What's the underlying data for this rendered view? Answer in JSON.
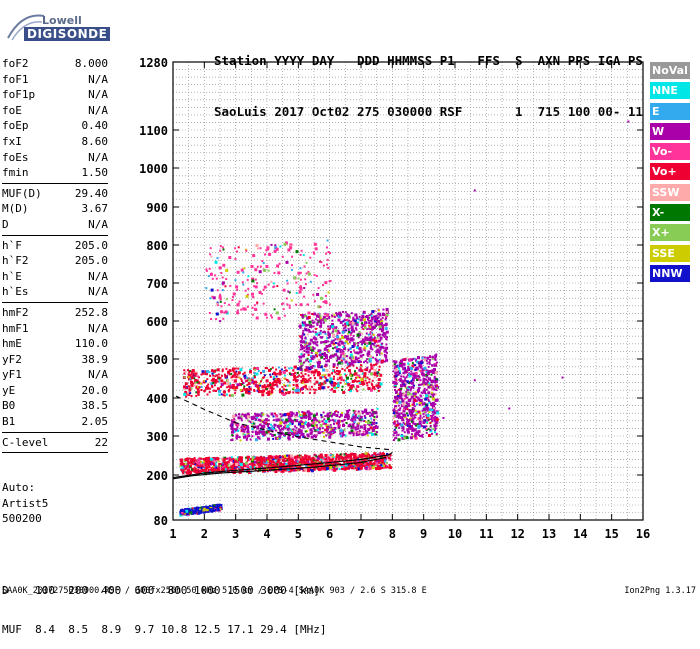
{
  "logo": {
    "top": "Lowell",
    "bottom": "DIGISONDE"
  },
  "header": {
    "line1": "Station YYYY DAY   DDD HHMMSS P1   FFS  S  AXN PPS IGA PS",
    "line2": "SaoLuis 2017 Oct02 275 030000 RSF       1  715 100 00- 11"
  },
  "params": [
    {
      "group": [
        {
          "name": "foF2",
          "value": "8.000"
        },
        {
          "name": "foF1",
          "value": "N/A"
        },
        {
          "name": "foF1p",
          "value": "N/A"
        },
        {
          "name": "foE",
          "value": "N/A"
        },
        {
          "name": "foEp",
          "value": "0.40"
        },
        {
          "name": "fxI",
          "value": "8.60"
        },
        {
          "name": "foEs",
          "value": "N/A"
        },
        {
          "name": "fmin",
          "value": "1.50"
        }
      ]
    },
    {
      "group": [
        {
          "name": "MUF(D)",
          "value": "29.40"
        },
        {
          "name": "M(D)",
          "value": "3.67"
        },
        {
          "name": "D",
          "value": "N/A"
        }
      ]
    },
    {
      "group": [
        {
          "name": "h`F",
          "value": "205.0"
        },
        {
          "name": "h`F2",
          "value": "205.0"
        },
        {
          "name": "h`E",
          "value": "N/A"
        },
        {
          "name": "h`Es",
          "value": "N/A"
        }
      ]
    },
    {
      "group": [
        {
          "name": "hmF2",
          "value": "252.8"
        },
        {
          "name": "hmF1",
          "value": "N/A"
        },
        {
          "name": "hmE",
          "value": "110.0"
        },
        {
          "name": "yF2",
          "value": "38.9"
        },
        {
          "name": "yF1",
          "value": "N/A"
        },
        {
          "name": "yE",
          "value": "20.0"
        },
        {
          "name": "B0",
          "value": "38.5"
        },
        {
          "name": "B1",
          "value": "2.05"
        }
      ]
    },
    {
      "group": [
        {
          "name": "C-level",
          "value": "22"
        }
      ]
    }
  ],
  "auto": {
    "line1": "Auto:",
    "line2": "Artist5",
    "line3": "500200"
  },
  "legend": [
    {
      "label": "NoVal",
      "color": "#999999"
    },
    {
      "label": "NNE",
      "color": "#00e6e6"
    },
    {
      "label": "E",
      "color": "#33aaee"
    },
    {
      "label": "W",
      "color": "#aa00aa"
    },
    {
      "label": "Vo-",
      "color": "#ff3399"
    },
    {
      "label": "Vo+",
      "color": "#ee0033"
    },
    {
      "label": "SSW",
      "color": "#ffaaaa"
    },
    {
      "label": "X-",
      "color": "#007700"
    },
    {
      "label": "X+",
      "color": "#88cc55"
    },
    {
      "label": "SSE",
      "color": "#cccc00"
    },
    {
      "label": "NNW",
      "color": "#1111cc"
    }
  ],
  "dtable": {
    "d_line": "D    100  200  400  600  800 1000 1500 3000 [km]",
    "muf_line": "MUF  8.4  8.5  8.9  9.7 10.8 12.5 17.1 29.4 [MHz]"
  },
  "footer": "SAA0K_2017275030000.RSF / 300fx256h 50 kHz 5.0 km / DPS-4 SAA0K 903 / 2.6 S 315.8 E",
  "version": "Ion2Png 1.3.17",
  "chart_data": {
    "type": "scatter",
    "x_ticks": [
      "1",
      "2",
      "3",
      "4",
      "5",
      "6",
      "7",
      "8",
      "9",
      "10",
      "11",
      "12",
      "13",
      "14",
      "15",
      "16"
    ],
    "y_ticks": [
      "80",
      "200",
      "300",
      "400",
      "500",
      "600",
      "700",
      "800",
      "900",
      "1000",
      "1100",
      "1280"
    ],
    "xlim": [
      1,
      16
    ],
    "ylim": [
      80,
      1280
    ],
    "y_scale": "nonlinear",
    "grid": true,
    "trace_lines": [
      {
        "name": "profile",
        "points": [
          [
            1.0,
            193
          ],
          [
            2,
            205
          ],
          [
            3,
            212
          ],
          [
            4,
            218
          ],
          [
            5,
            225
          ],
          [
            6,
            232
          ],
          [
            7,
            240
          ],
          [
            7.9,
            252
          ],
          [
            8.0,
            258
          ]
        ]
      },
      {
        "name": "lower",
        "points": [
          [
            1.0,
            190
          ],
          [
            1.6,
            198
          ],
          [
            2.5,
            205
          ],
          [
            4,
            212
          ],
          [
            5.5,
            220
          ],
          [
            7,
            232
          ],
          [
            7.8,
            245
          ]
        ]
      },
      {
        "name": "dashed",
        "points": [
          [
            1.1,
            405
          ],
          [
            2,
            370
          ],
          [
            3,
            335
          ],
          [
            4,
            315
          ],
          [
            5,
            298
          ],
          [
            6,
            285
          ],
          [
            7,
            272
          ],
          [
            7.9,
            265
          ]
        ]
      }
    ],
    "clusters": [
      {
        "x_min": 1.2,
        "x_max": 7.9,
        "y_min": 205,
        "y_max": 245,
        "color": "#ee0033",
        "density": "high"
      },
      {
        "x_min": 1.3,
        "x_max": 7.6,
        "y_min": 405,
        "y_max": 475,
        "color": "#ee0033",
        "density": "medium"
      },
      {
        "x_min": 2.8,
        "x_max": 7.5,
        "y_min": 290,
        "y_max": 360,
        "color": "#aa00aa",
        "density": "medium"
      },
      {
        "x_min": 5.0,
        "x_max": 7.8,
        "y_min": 480,
        "y_max": 620,
        "color": "#aa00aa",
        "density": "medium"
      },
      {
        "x_min": 2.0,
        "x_max": 6.0,
        "y_min": 600,
        "y_max": 800,
        "color": "#ff3399",
        "density": "low"
      },
      {
        "x_min": 8.0,
        "x_max": 9.4,
        "y_min": 290,
        "y_max": 500,
        "color": "#aa00aa",
        "density": "medium"
      },
      {
        "x_min": 1.2,
        "x_max": 2.5,
        "y_min": 95,
        "y_max": 110,
        "color": "#1111cc",
        "density": "low"
      }
    ]
  }
}
